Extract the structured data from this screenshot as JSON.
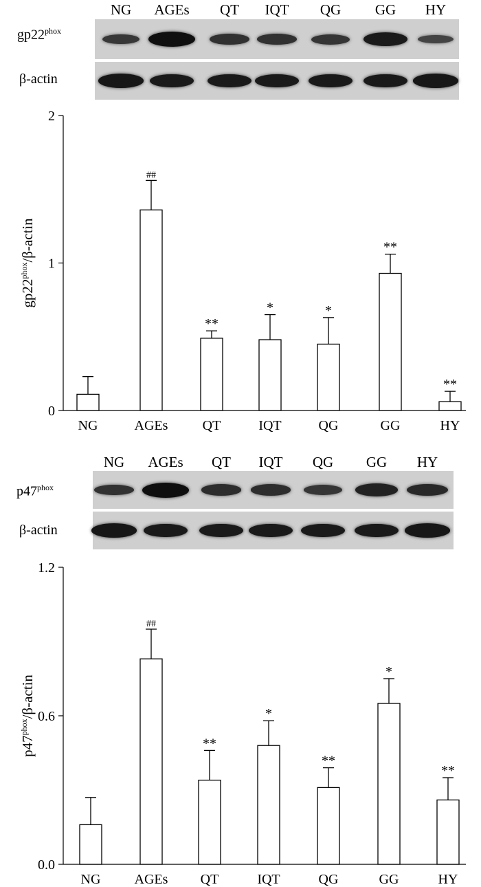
{
  "panels": [
    {
      "blot": {
        "lanes": [
          "NG",
          "AGEs",
          "QT",
          "IQT",
          "QG",
          "GG",
          "HY"
        ],
        "rows": [
          {
            "label_main": "gp22",
            "label_sup": "phox",
            "intensity": [
              0.45,
              1.0,
              0.55,
              0.55,
              0.5,
              0.85,
              0.3
            ]
          },
          {
            "label_main": "β-actin",
            "label_sup": "",
            "intensity": [
              0.9,
              0.85,
              0.85,
              0.85,
              0.85,
              0.85,
              0.9
            ]
          }
        ]
      },
      "chart_data": {
        "type": "bar",
        "categories": [
          "NG",
          "AGEs",
          "QT",
          "IQT",
          "QG",
          "GG",
          "HY"
        ],
        "values": [
          0.11,
          1.36,
          0.49,
          0.48,
          0.45,
          0.93,
          0.06
        ],
        "errors": [
          0.12,
          0.2,
          0.05,
          0.17,
          0.18,
          0.13,
          0.07
        ],
        "annotations": [
          "",
          "##",
          "**",
          "*",
          "*",
          "**",
          "**"
        ],
        "ylabel_main": "gp22",
        "ylabel_sup": "phox",
        "ylabel_rest": "/β-actin",
        "ylim": [
          0,
          2
        ],
        "yticks": [
          0,
          1,
          2
        ],
        "ytick_labels": [
          "0",
          "1",
          "2"
        ]
      }
    },
    {
      "blot": {
        "lanes": [
          "NG",
          "AGEs",
          "QT",
          "IQT",
          "QG",
          "GG",
          "HY"
        ],
        "rows": [
          {
            "label_main": "p47",
            "label_sup": "phox",
            "intensity": [
              0.55,
              1.0,
              0.6,
              0.6,
              0.5,
              0.75,
              0.65
            ]
          },
          {
            "label_main": "β-actin",
            "label_sup": "",
            "intensity": [
              0.9,
              0.85,
              0.85,
              0.85,
              0.85,
              0.85,
              0.9
            ]
          }
        ]
      },
      "chart_data": {
        "type": "bar",
        "categories": [
          "NG",
          "AGEs",
          "QT",
          "IQT",
          "QG",
          "GG",
          "HY"
        ],
        "values": [
          0.16,
          0.83,
          0.34,
          0.48,
          0.31,
          0.65,
          0.26
        ],
        "errors": [
          0.11,
          0.12,
          0.12,
          0.1,
          0.08,
          0.1,
          0.09
        ],
        "annotations": [
          "",
          "##",
          "**",
          "*",
          "**",
          "*",
          "**"
        ],
        "ylabel_main": "p47",
        "ylabel_sup": "phox",
        "ylabel_rest": "/β-actin",
        "ylim": [
          0,
          1.2
        ],
        "yticks": [
          0,
          0.6,
          1.2
        ],
        "ytick_labels": [
          "0.0",
          "0.6",
          "1.2"
        ]
      }
    }
  ]
}
